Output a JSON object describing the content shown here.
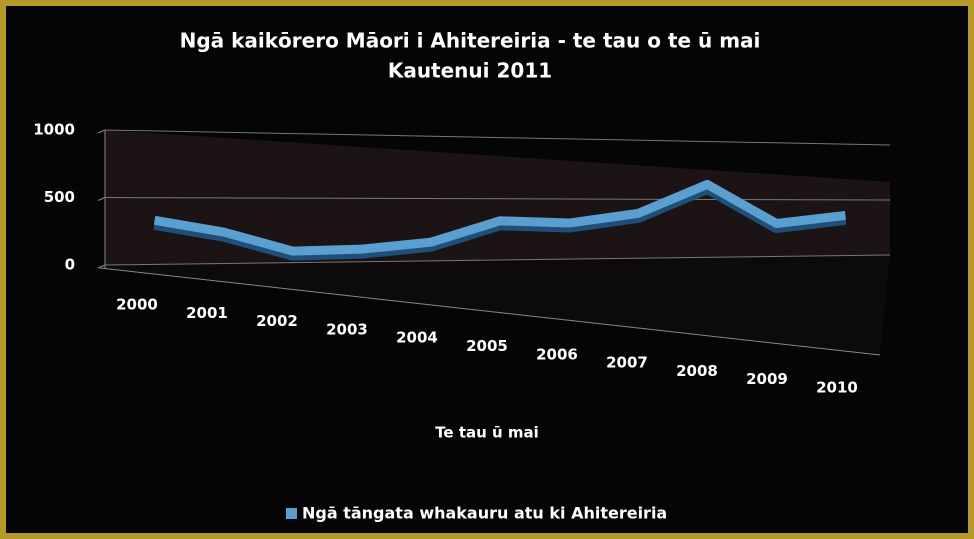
{
  "chart_data": {
    "type": "line",
    "title": "Ngā kaikōrero Māori i Ahitereiria - te tau o te ū mai",
    "subtitle": "Kautenui 2011",
    "x_label": "Te tau ū mai",
    "categories": [
      "2000",
      "2001",
      "2002",
      "2003",
      "2004",
      "2005",
      "2006",
      "2007",
      "2008",
      "2009",
      "2010"
    ],
    "series": [
      {
        "name": "Ngā tāngata whakauru atu ki Ahitereiria",
        "color": "#5b9fd0",
        "values": [
          330,
          240,
          90,
          100,
          150,
          320,
          300,
          380,
          630,
          290,
          360
        ]
      }
    ],
    "ylim": [
      0,
      1000
    ],
    "yticks": [
      0,
      500,
      1000
    ],
    "grid": true
  }
}
